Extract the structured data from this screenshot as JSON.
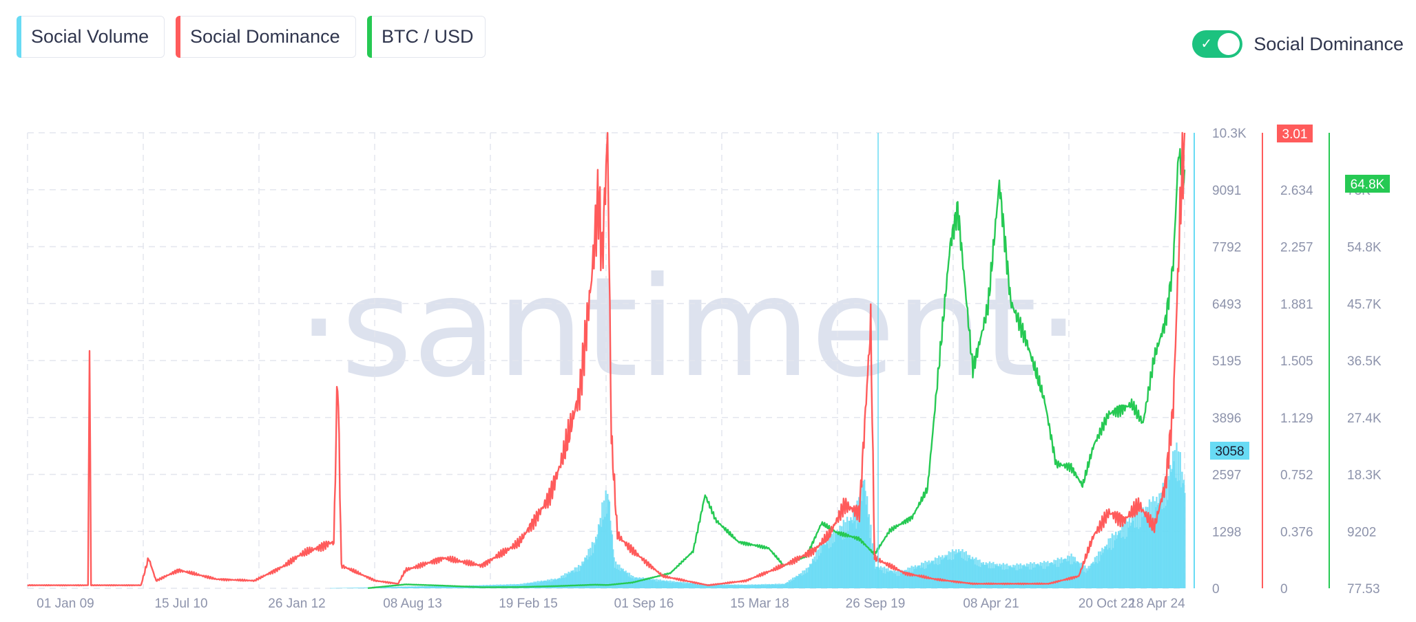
{
  "metrics": [
    {
      "label": "Social Volume",
      "color": "#68dbf4"
    },
    {
      "label": "Social Dominance",
      "color": "#ff5b5b"
    },
    {
      "label": "BTC / USD",
      "color": "#26c953"
    }
  ],
  "toggle": {
    "label": "Social Dominance",
    "on": true,
    "color": "#1cc27f"
  },
  "watermark": "·santiment·",
  "chart_data": {
    "type": "line",
    "x_tick_labels": [
      "01 Jan 09",
      "15 Jul 10",
      "26 Jan 12",
      "08 Aug 13",
      "19 Feb 15",
      "01 Sep 16",
      "15 Mar 18",
      "26 Sep 19",
      "08 Apr 21",
      "20 Oct 22",
      "18 Apr 24"
    ],
    "x_range": [
      "2009-01-01",
      "2024-04-18"
    ],
    "axes": [
      {
        "series": "Social Volume",
        "ticks": [
          "10.3K",
          "9091",
          "7792",
          "6493",
          "5195",
          "3896",
          "2597",
          "1298",
          "0"
        ],
        "range": [
          0,
          10390
        ],
        "current": "3058",
        "color": "#68dbf4"
      },
      {
        "series": "Social Dominance",
        "ticks": [
          "2.634",
          "2.257",
          "1.881",
          "1.505",
          "1.129",
          "0.752",
          "0.376",
          "0"
        ],
        "range": [
          0,
          3.01
        ],
        "current": "3.01",
        "color": "#ff5b5b"
      },
      {
        "series": "BTC / USD",
        "ticks": [
          "73K",
          "54.8K",
          "45.7K",
          "36.5K",
          "27.4K",
          "18.3K",
          "9202",
          "77.53"
        ],
        "range": [
          77.53,
          73000
        ],
        "current": "64.8K",
        "color": "#26c953"
      }
    ],
    "series": [
      {
        "name": "Social Volume",
        "style": "bars",
        "points": [
          [
            2013.0,
            5
          ],
          [
            2013.5,
            25
          ],
          [
            2014.0,
            55
          ],
          [
            2014.5,
            70
          ],
          [
            2015.0,
            95
          ],
          [
            2015.5,
            130
          ],
          [
            2016.0,
            300
          ],
          [
            2016.3,
            700
          ],
          [
            2016.5,
            1500
          ],
          [
            2016.6,
            2600
          ],
          [
            2016.67,
            3000
          ],
          [
            2016.75,
            800
          ],
          [
            2017.0,
            350
          ],
          [
            2017.5,
            220
          ],
          [
            2018.0,
            120
          ],
          [
            2018.5,
            110
          ],
          [
            2019.0,
            140
          ],
          [
            2019.3,
            600
          ],
          [
            2019.5,
            1400
          ],
          [
            2019.8,
            2000
          ],
          [
            2019.95,
            2400
          ],
          [
            2020.05,
            3500
          ],
          [
            2020.2,
            700
          ],
          [
            2020.5,
            500
          ],
          [
            2021.0,
            900
          ],
          [
            2021.3,
            1200
          ],
          [
            2021.6,
            800
          ],
          [
            2022.0,
            700
          ],
          [
            2022.5,
            800
          ],
          [
            2022.8,
            1000
          ],
          [
            2023.0,
            600
          ],
          [
            2023.3,
            1500
          ],
          [
            2023.6,
            2200
          ],
          [
            2023.9,
            2700
          ],
          [
            2024.05,
            3200
          ],
          [
            2024.15,
            4300
          ],
          [
            2024.22,
            4100
          ],
          [
            2024.3,
            3058
          ]
        ]
      },
      {
        "name": "Social Dominance",
        "style": "line",
        "points": [
          [
            2009.0,
            0.02
          ],
          [
            2009.8,
            0.02
          ],
          [
            2009.82,
            1.63
          ],
          [
            2009.84,
            0.02
          ],
          [
            2010.5,
            0.02
          ],
          [
            2010.6,
            0.2
          ],
          [
            2010.7,
            0.05
          ],
          [
            2011.0,
            0.12
          ],
          [
            2011.5,
            0.06
          ],
          [
            2012.0,
            0.05
          ],
          [
            2012.4,
            0.15
          ],
          [
            2012.6,
            0.22
          ],
          [
            2012.9,
            0.28
          ],
          [
            2013.0,
            0.3
          ],
          [
            2013.05,
            0.3
          ],
          [
            2013.1,
            1.45
          ],
          [
            2013.15,
            0.15
          ],
          [
            2013.6,
            0.05
          ],
          [
            2013.9,
            0.03
          ],
          [
            2014.0,
            0.12
          ],
          [
            2014.5,
            0.2
          ],
          [
            2015.0,
            0.15
          ],
          [
            2015.5,
            0.3
          ],
          [
            2015.9,
            0.6
          ],
          [
            2016.1,
            0.9
          ],
          [
            2016.3,
            1.3
          ],
          [
            2016.45,
            2.0
          ],
          [
            2016.55,
            2.6
          ],
          [
            2016.6,
            2.2
          ],
          [
            2016.67,
            3.0
          ],
          [
            2016.72,
            1.0
          ],
          [
            2016.8,
            0.35
          ],
          [
            2017.0,
            0.25
          ],
          [
            2017.4,
            0.08
          ],
          [
            2018.0,
            0.02
          ],
          [
            2018.5,
            0.05
          ],
          [
            2019.0,
            0.15
          ],
          [
            2019.4,
            0.25
          ],
          [
            2019.6,
            0.35
          ],
          [
            2019.8,
            0.55
          ],
          [
            2020.0,
            0.5
          ],
          [
            2020.15,
            1.75
          ],
          [
            2020.2,
            0.2
          ],
          [
            2020.6,
            0.1
          ],
          [
            2021.0,
            0.06
          ],
          [
            2021.5,
            0.03
          ],
          [
            2022.0,
            0.03
          ],
          [
            2022.5,
            0.03
          ],
          [
            2022.9,
            0.08
          ],
          [
            2023.1,
            0.35
          ],
          [
            2023.3,
            0.5
          ],
          [
            2023.5,
            0.45
          ],
          [
            2023.7,
            0.55
          ],
          [
            2023.9,
            0.4
          ],
          [
            2024.05,
            0.7
          ],
          [
            2024.15,
            1.2
          ],
          [
            2024.25,
            2.6
          ],
          [
            2024.3,
            3.01
          ]
        ]
      },
      {
        "name": "BTC / USD",
        "style": "line",
        "points": [
          [
            2013.5,
            100
          ],
          [
            2014.0,
            700
          ],
          [
            2014.5,
            500
          ],
          [
            2015.0,
            250
          ],
          [
            2015.5,
            270
          ],
          [
            2016.0,
            430
          ],
          [
            2016.5,
            650
          ],
          [
            2016.67,
            600
          ],
          [
            2017.0,
            1000
          ],
          [
            2017.5,
            2500
          ],
          [
            2017.8,
            6000
          ],
          [
            2017.96,
            15000
          ],
          [
            2018.1,
            11000
          ],
          [
            2018.4,
            7500
          ],
          [
            2018.8,
            6500
          ],
          [
            2019.0,
            3700
          ],
          [
            2019.3,
            5200
          ],
          [
            2019.5,
            10500
          ],
          [
            2019.7,
            9000
          ],
          [
            2020.0,
            8000
          ],
          [
            2020.2,
            5500
          ],
          [
            2020.4,
            9300
          ],
          [
            2020.7,
            11500
          ],
          [
            2020.9,
            16000
          ],
          [
            2021.0,
            29000
          ],
          [
            2021.2,
            55000
          ],
          [
            2021.3,
            61000
          ],
          [
            2021.5,
            35000
          ],
          [
            2021.7,
            45000
          ],
          [
            2021.85,
            65000
          ],
          [
            2022.0,
            46000
          ],
          [
            2022.2,
            40000
          ],
          [
            2022.45,
            30000
          ],
          [
            2022.6,
            20000
          ],
          [
            2022.8,
            19500
          ],
          [
            2022.95,
            16500
          ],
          [
            2023.1,
            23000
          ],
          [
            2023.3,
            28000
          ],
          [
            2023.6,
            29500
          ],
          [
            2023.75,
            26500
          ],
          [
            2023.9,
            37000
          ],
          [
            2024.05,
            43000
          ],
          [
            2024.15,
            52000
          ],
          [
            2024.22,
            70000
          ],
          [
            2024.28,
            66000
          ],
          [
            2024.3,
            64800
          ]
        ]
      }
    ]
  }
}
